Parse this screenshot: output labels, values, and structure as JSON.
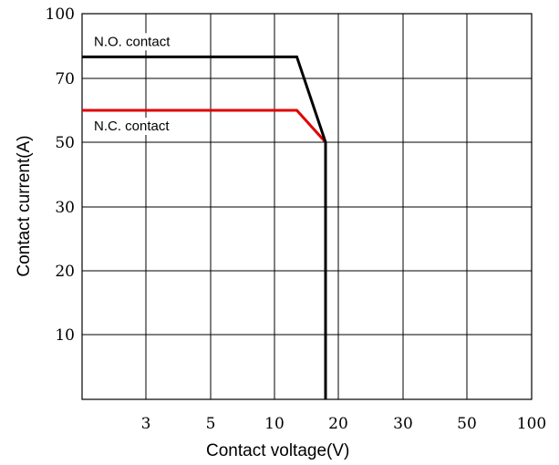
{
  "chart_data": {
    "type": "line",
    "title": "",
    "xlabel": "Contact voltage(V)",
    "ylabel": "Contact current(A)",
    "x_ticks": [
      "3",
      "5",
      "10",
      "20",
      "30",
      "50",
      "100"
    ],
    "y_ticks": [
      "10",
      "20",
      "30",
      "50",
      "70",
      "100"
    ],
    "grid": true,
    "legend": "inline labels",
    "series": [
      {
        "name": "N.O. contact",
        "color": "#000000",
        "points": [
          [
            "2",
            "80"
          ],
          [
            "13.5",
            "80"
          ],
          [
            "18",
            "50"
          ],
          [
            "18",
            "0"
          ]
        ]
      },
      {
        "name": "N.C. contact",
        "color": "#e00000",
        "points": [
          [
            "2",
            "60"
          ],
          [
            "13.5",
            "60"
          ],
          [
            "18",
            "50"
          ]
        ]
      }
    ]
  }
}
